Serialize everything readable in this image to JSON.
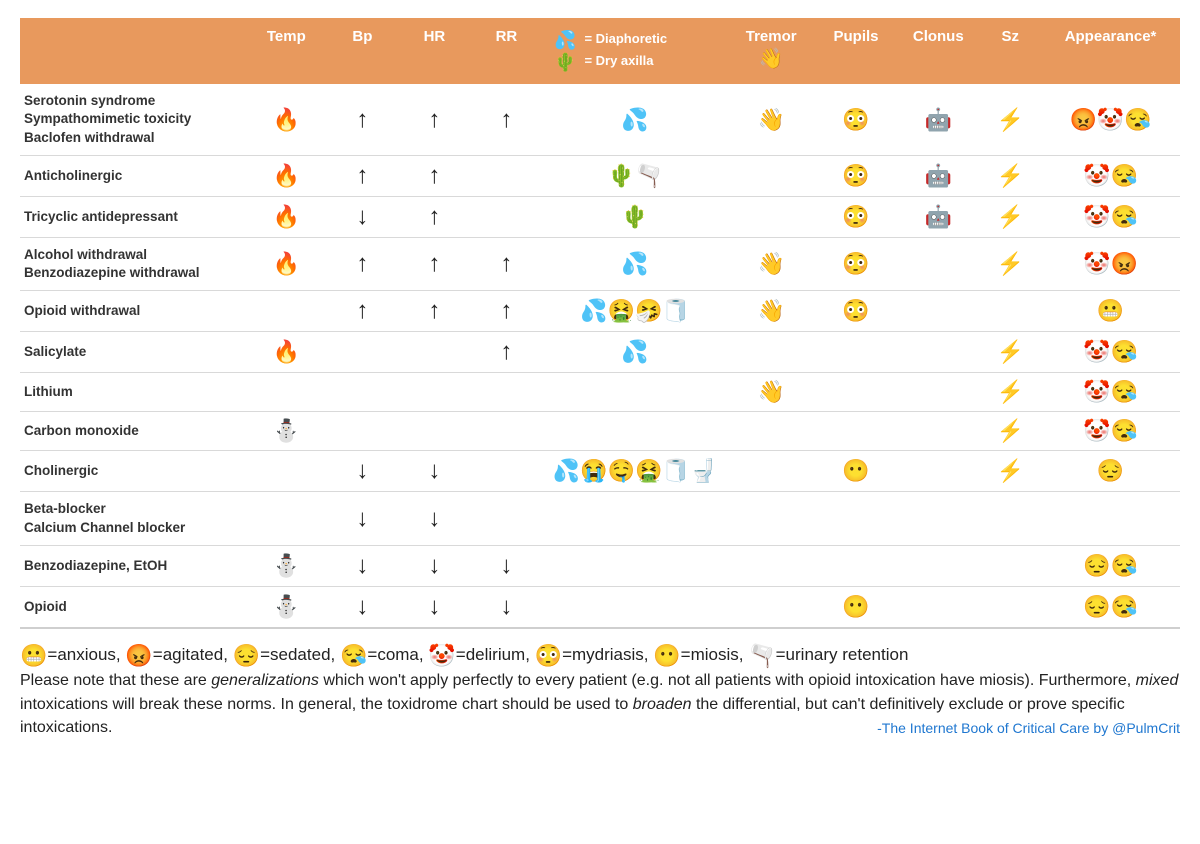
{
  "colors": {
    "header_bg": "#e8995d",
    "header_text": "#ffffff",
    "row_border": "#d9d9d9",
    "text": "#222222",
    "credit": "#1f77d0"
  },
  "typography": {
    "body_font": "Helvetica Neue, Helvetica, Arial, sans-serif",
    "header_fontsize_pt": 11,
    "cell_fontsize_pt": 10,
    "legend_fontsize_pt": 12
  },
  "header": {
    "temp": "Temp",
    "bp": "Bp",
    "hr": "HR",
    "rr": "RR",
    "skin_diaphoretic": "= Diaphoretic",
    "skin_dry": "= Dry axilla",
    "tremor": "Tremor",
    "pupils": "Pupils",
    "clonus": "Clonus",
    "sz": "Sz",
    "appearance": "Appearance*"
  },
  "icons": {
    "fire": "🔥",
    "snowman": "⛄",
    "up": "↑",
    "down": "↓",
    "sweat": "💦",
    "cactus": "🌵",
    "wave": "👋",
    "flushed": "😳",
    "miosis": "😶",
    "robot": "🤖",
    "zap": "⚡",
    "angry": "😡",
    "clown": "🤡",
    "sleepy": "😴",
    "coma": "😪",
    "anxious": "😬",
    "sedated": "😔",
    "vomit": "🤮",
    "sneeze": "🤧",
    "roll": "🧻",
    "cry": "😭",
    "drool": "🤤",
    "pee": "🚽",
    "bladder": "🫗"
  },
  "rows": [
    {
      "name": "Serotonin syndrome\nSympathomimetic toxicity\nBaclofen withdrawal",
      "temp": [
        "fire"
      ],
      "bp": [
        "up"
      ],
      "hr": [
        "up"
      ],
      "rr": [
        "up"
      ],
      "skin": [
        "sweat"
      ],
      "tremor": [
        "wave"
      ],
      "pupils": [
        "flushed"
      ],
      "clonus": [
        "robot"
      ],
      "sz": [
        "zap"
      ],
      "app": [
        "angry",
        "clown",
        "coma"
      ]
    },
    {
      "name": "Anticholinergic",
      "temp": [
        "fire"
      ],
      "bp": [
        "up"
      ],
      "hr": [
        "up"
      ],
      "rr": [],
      "skin": [
        "cactus",
        "bladder"
      ],
      "tremor": [],
      "pupils": [
        "flushed"
      ],
      "clonus": [
        "robot"
      ],
      "sz": [
        "zap"
      ],
      "app": [
        "clown",
        "coma"
      ]
    },
    {
      "name": "Tricyclic antidepressant",
      "temp": [
        "fire"
      ],
      "bp": [
        "down"
      ],
      "hr": [
        "up"
      ],
      "rr": [],
      "skin": [
        "cactus"
      ],
      "tremor": [],
      "pupils": [
        "flushed"
      ],
      "clonus": [
        "robot"
      ],
      "sz": [
        "zap"
      ],
      "app": [
        "clown",
        "coma"
      ]
    },
    {
      "name": "Alcohol withdrawal\nBenzodiazepine withdrawal",
      "temp": [
        "fire"
      ],
      "bp": [
        "up"
      ],
      "hr": [
        "up"
      ],
      "rr": [
        "up"
      ],
      "skin": [
        "sweat"
      ],
      "tremor": [
        "wave"
      ],
      "pupils": [
        "flushed"
      ],
      "clonus": [],
      "sz": [
        "zap"
      ],
      "app": [
        "clown",
        "angry"
      ]
    },
    {
      "name": "Opioid withdrawal",
      "temp": [],
      "bp": [
        "up"
      ],
      "hr": [
        "up"
      ],
      "rr": [
        "up"
      ],
      "skin": [
        "sweat",
        "vomit",
        "sneeze",
        "roll"
      ],
      "tremor": [
        "wave"
      ],
      "pupils": [
        "flushed"
      ],
      "clonus": [],
      "sz": [],
      "app": [
        "anxious"
      ]
    },
    {
      "name": "Salicylate",
      "temp": [
        "fire"
      ],
      "bp": [],
      "hr": [],
      "rr": [
        "up"
      ],
      "skin": [
        "sweat"
      ],
      "tremor": [],
      "pupils": [],
      "clonus": [],
      "sz": [
        "zap"
      ],
      "app": [
        "clown",
        "coma"
      ]
    },
    {
      "name": "Lithium",
      "temp": [],
      "bp": [],
      "hr": [],
      "rr": [],
      "skin": [],
      "tremor": [
        "wave"
      ],
      "pupils": [],
      "clonus": [],
      "sz": [
        "zap"
      ],
      "app": [
        "clown",
        "coma"
      ]
    },
    {
      "name": "Carbon monoxide",
      "temp": [
        "snowman"
      ],
      "bp": [],
      "hr": [],
      "rr": [],
      "skin": [],
      "tremor": [],
      "pupils": [],
      "clonus": [],
      "sz": [
        "zap"
      ],
      "app": [
        "clown",
        "coma"
      ]
    },
    {
      "name": "Cholinergic",
      "temp": [],
      "bp": [
        "down"
      ],
      "hr": [
        "down"
      ],
      "rr": [],
      "skin": [
        "sweat",
        "cry",
        "drool",
        "vomit",
        "roll",
        "pee"
      ],
      "tremor": [],
      "pupils": [
        "miosis"
      ],
      "clonus": [],
      "sz": [
        "zap"
      ],
      "app": [
        "sedated"
      ]
    },
    {
      "name": "Beta-blocker\nCalcium Channel blocker",
      "temp": [],
      "bp": [
        "down"
      ],
      "hr": [
        "down"
      ],
      "rr": [],
      "skin": [],
      "tremor": [],
      "pupils": [],
      "clonus": [],
      "sz": [],
      "app": []
    },
    {
      "name": "Benzodiazepine, EtOH",
      "temp": [
        "snowman"
      ],
      "bp": [
        "down"
      ],
      "hr": [
        "down"
      ],
      "rr": [
        "down"
      ],
      "skin": [],
      "tremor": [],
      "pupils": [],
      "clonus": [],
      "sz": [],
      "app": [
        "sedated",
        "coma"
      ]
    },
    {
      "name": "Opioid",
      "temp": [
        "snowman"
      ],
      "bp": [
        "down"
      ],
      "hr": [
        "down"
      ],
      "rr": [
        "down"
      ],
      "skin": [],
      "tremor": [],
      "pupils": [
        "miosis"
      ],
      "clonus": [],
      "sz": [],
      "app": [
        "sedated",
        "coma"
      ]
    }
  ],
  "legend": {
    "items": [
      {
        "icon": "anxious",
        "label": "=anxious,"
      },
      {
        "icon": "angry",
        "label": "=agitated,"
      },
      {
        "icon": "sedated",
        "label": "=sedated,"
      },
      {
        "icon": "coma",
        "label": "=coma,"
      },
      {
        "icon": "clown",
        "label": "=delirium,"
      },
      {
        "icon": "flushed",
        "label": "=mydriasis,"
      },
      {
        "icon": "miosis",
        "label": "=miosis,"
      },
      {
        "icon": "bladder",
        "label": "=urinary retention"
      }
    ],
    "note_before": "Please note that these are ",
    "note_em1": "generalizations",
    "note_mid1": " which won't apply perfectly to every patient (e.g. not all patients with opioid intoxication have miosis).  Furthermore, ",
    "note_em2": "mixed",
    "note_mid2": " intoxications will break these norms.  In general, the toxidrome chart should be used to ",
    "note_em3": "broaden",
    "note_after": " the differential, but can't definitively exclude or prove specific intoxications.",
    "credit": "-The Internet Book of Critical Care by @PulmCrit"
  }
}
